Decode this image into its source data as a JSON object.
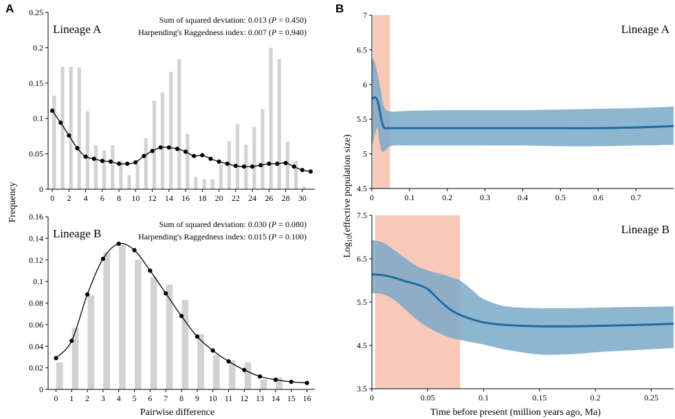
{
  "panel_labels": {
    "a": "A",
    "b": "B"
  },
  "shared_labels": {
    "frequency": "Frequency",
    "pairwise": "Pairwise difference",
    "log_pre": "Log",
    "log_sub": "10",
    "log_post": "(effective population size)",
    "time": "Time before present (million years ago, Ma)"
  },
  "colors": {
    "bar": "#d3d1d1",
    "line": "#000000",
    "band": "#7aa9c8",
    "median": "#1f6aa0",
    "highlight": "#f8c8b8"
  },
  "chart_data": [
    {
      "id": "A1",
      "type": "bar",
      "title": "Lineage A",
      "stat1_pre": "Sum of squared deviation: 0.013  (",
      "stat1_p": "P",
      "stat1_post": " = 0.450)",
      "stat2_pre": "Harpending's Raggedness index: 0.007  (",
      "stat2_p": "P",
      "stat2_post": " = 0.940)",
      "xlabel": "",
      "ylabel": "Frequency",
      "xlim": [
        -0.5,
        31.5
      ],
      "ylim": [
        0,
        0.25
      ],
      "yticks": [
        0,
        0.05,
        0.1,
        0.15,
        0.2,
        0.25
      ],
      "ytick_labels": [
        "0",
        "0.05",
        "0.1",
        "0.15",
        "0.2",
        "0.25"
      ],
      "xticks": [
        0,
        2,
        4,
        6,
        8,
        10,
        12,
        14,
        16,
        18,
        20,
        22,
        24,
        26,
        28,
        30
      ],
      "xtick_labels": [
        "0",
        "2",
        "4",
        "6",
        "8",
        "10",
        "12",
        "14",
        "16",
        "18",
        "20",
        "22",
        "24",
        "26",
        "28",
        "30"
      ],
      "bar_x": [
        0,
        1,
        2,
        3,
        4,
        5,
        6,
        7,
        8,
        9,
        10,
        11,
        12,
        13,
        14,
        15,
        16,
        17,
        18,
        19,
        20,
        21,
        22,
        23,
        24,
        25,
        26,
        27,
        28,
        29,
        30
      ],
      "bar_values": [
        0.132,
        0.173,
        0.173,
        0.172,
        0.11,
        0.062,
        0.055,
        0.062,
        0.04,
        0.02,
        0.035,
        0.072,
        0.125,
        0.137,
        0.166,
        0.184,
        0.078,
        0.017,
        0.014,
        0.014,
        0.035,
        0.068,
        0.092,
        0.063,
        0.088,
        0.113,
        0.2,
        0.184,
        0.067,
        0.04,
        0.004
      ],
      "line_x": [
        0,
        1,
        2,
        3,
        4,
        5,
        6,
        7,
        8,
        9,
        10,
        11,
        12,
        13,
        14,
        15,
        16,
        17,
        18,
        19,
        20,
        21,
        22,
        23,
        24,
        25,
        26,
        27,
        28,
        29,
        30,
        31
      ],
      "line_values": [
        0.111,
        0.094,
        0.076,
        0.058,
        0.046,
        0.043,
        0.04,
        0.039,
        0.036,
        0.036,
        0.038,
        0.047,
        0.054,
        0.059,
        0.059,
        0.057,
        0.053,
        0.047,
        0.048,
        0.043,
        0.039,
        0.036,
        0.033,
        0.032,
        0.032,
        0.034,
        0.036,
        0.036,
        0.037,
        0.032,
        0.027,
        0.025
      ]
    },
    {
      "id": "A2",
      "type": "bar",
      "title": "Lineage B",
      "stat1_pre": "Sum of squared deviation: 0.030  (",
      "stat1_p": "P",
      "stat1_post": " = 0.080)",
      "stat2_pre": "Harpending's Raggedness index: 0.015  (",
      "stat2_p": "P",
      "stat2_post": " = 0.100)",
      "xlabel": "Pairwise difference",
      "ylabel": "Frequency",
      "xlim": [
        -0.5,
        16.5
      ],
      "ylim": [
        0,
        0.16
      ],
      "yticks": [
        0,
        0.02,
        0.04,
        0.06,
        0.08,
        0.1,
        0.12,
        0.14,
        0.16
      ],
      "ytick_labels": [
        "0",
        "0.02",
        "0.04",
        "0.06",
        "0.08",
        "0.1",
        "0.12",
        "0.14",
        "0.16"
      ],
      "xticks": [
        0,
        1,
        2,
        3,
        4,
        5,
        6,
        7,
        8,
        9,
        10,
        11,
        12,
        13,
        14,
        15,
        16
      ],
      "xtick_labels": [
        "0",
        "1",
        "2",
        "3",
        "4",
        "5",
        "6",
        "7",
        "8",
        "9",
        "10",
        "11",
        "12",
        "13",
        "14",
        "15",
        "16"
      ],
      "bar_x": [
        0,
        1,
        2,
        3,
        4,
        5,
        6,
        7,
        8,
        9,
        10,
        11,
        12,
        13,
        14
      ],
      "bar_values": [
        0.025,
        0.057,
        0.087,
        0.127,
        0.134,
        0.12,
        0.104,
        0.097,
        0.083,
        0.051,
        0.032,
        0.027,
        0.025,
        0.009,
        0.011
      ],
      "line_x": [
        0,
        1,
        2,
        3,
        4,
        5,
        6,
        7,
        8,
        9,
        10,
        11,
        12,
        13,
        14,
        15,
        16
      ],
      "line_values": [
        0.029,
        0.045,
        0.088,
        0.121,
        0.135,
        0.129,
        0.11,
        0.089,
        0.068,
        0.049,
        0.036,
        0.026,
        0.018,
        0.012,
        0.009,
        0.007,
        0.006
      ]
    },
    {
      "id": "B1",
      "type": "area",
      "title": "Lineage A",
      "xlabel": "",
      "ylabel": "Log10(effective population size)",
      "xlim": [
        0,
        0.8
      ],
      "ylim": [
        4.5,
        7
      ],
      "yticks": [
        4.5,
        5,
        5.5,
        6,
        6.5,
        7
      ],
      "ytick_labels": [
        "4.5",
        "5",
        "5.5",
        "6",
        "6.5",
        "7"
      ],
      "xticks": [
        0,
        0.1,
        0.2,
        0.3,
        0.4,
        0.5,
        0.6,
        0.7
      ],
      "xtick_labels": [
        "0",
        "0.1",
        "0.2",
        "0.3",
        "0.4",
        "0.5",
        "0.6",
        "0.7"
      ],
      "highlight": [
        0.003,
        0.048
      ],
      "x": [
        0,
        0.005,
        0.01,
        0.015,
        0.02,
        0.025,
        0.03,
        0.035,
        0.04,
        0.045,
        0.05,
        0.06,
        0.1,
        0.2,
        0.3,
        0.4,
        0.5,
        0.6,
        0.7,
        0.8
      ],
      "median": [
        5.79,
        5.81,
        5.81,
        5.76,
        5.65,
        5.5,
        5.4,
        5.37,
        5.37,
        5.37,
        5.37,
        5.37,
        5.37,
        5.37,
        5.37,
        5.37,
        5.37,
        5.37,
        5.38,
        5.4
      ],
      "upper": [
        6.38,
        6.35,
        6.28,
        6.15,
        6.02,
        5.87,
        5.72,
        5.65,
        5.62,
        5.62,
        5.61,
        5.61,
        5.62,
        5.63,
        5.63,
        5.63,
        5.64,
        5.65,
        5.66,
        5.68
      ],
      "lower": [
        5.1,
        5.22,
        5.32,
        5.38,
        5.18,
        5.05,
        5.03,
        5.05,
        5.08,
        5.1,
        5.11,
        5.12,
        5.12,
        5.12,
        5.12,
        5.12,
        5.11,
        5.11,
        5.12,
        5.13
      ]
    },
    {
      "id": "B2",
      "type": "area",
      "title": "Lineage B",
      "xlabel": "Time before present (million years ago, Ma)",
      "ylabel": "Log10(effective population size)",
      "xlim": [
        0,
        0.27
      ],
      "ylim": [
        3.5,
        7.5
      ],
      "yticks": [
        3.5,
        4.5,
        5.5,
        6.5,
        7.5
      ],
      "ytick_labels": [
        "3.5",
        "4.5",
        "5.5",
        "6.5",
        "7.5"
      ],
      "xticks": [
        0,
        0.05,
        0.1,
        0.15,
        0.2,
        0.25
      ],
      "xtick_labels": [
        "0",
        "0.05",
        "0.1",
        "0.15",
        "0.2",
        "0.25"
      ],
      "highlight": [
        0.003,
        0.079
      ],
      "x": [
        0,
        0.01,
        0.02,
        0.03,
        0.04,
        0.05,
        0.06,
        0.07,
        0.08,
        0.09,
        0.1,
        0.12,
        0.15,
        0.18,
        0.2,
        0.22,
        0.25,
        0.27
      ],
      "median": [
        6.14,
        6.12,
        6.06,
        5.98,
        5.91,
        5.8,
        5.55,
        5.33,
        5.19,
        5.1,
        5.03,
        4.97,
        4.94,
        4.94,
        4.95,
        4.96,
        4.98,
        5.0
      ],
      "upper": [
        6.93,
        6.87,
        6.7,
        6.51,
        6.33,
        6.23,
        6.16,
        6.08,
        5.98,
        5.77,
        5.57,
        5.4,
        5.36,
        5.36,
        5.37,
        5.38,
        5.39,
        5.4
      ],
      "lower": [
        5.7,
        5.68,
        5.55,
        5.33,
        5.1,
        4.92,
        4.78,
        4.68,
        4.62,
        4.57,
        4.52,
        4.4,
        4.29,
        4.3,
        4.34,
        4.37,
        4.41,
        4.44
      ]
    }
  ]
}
